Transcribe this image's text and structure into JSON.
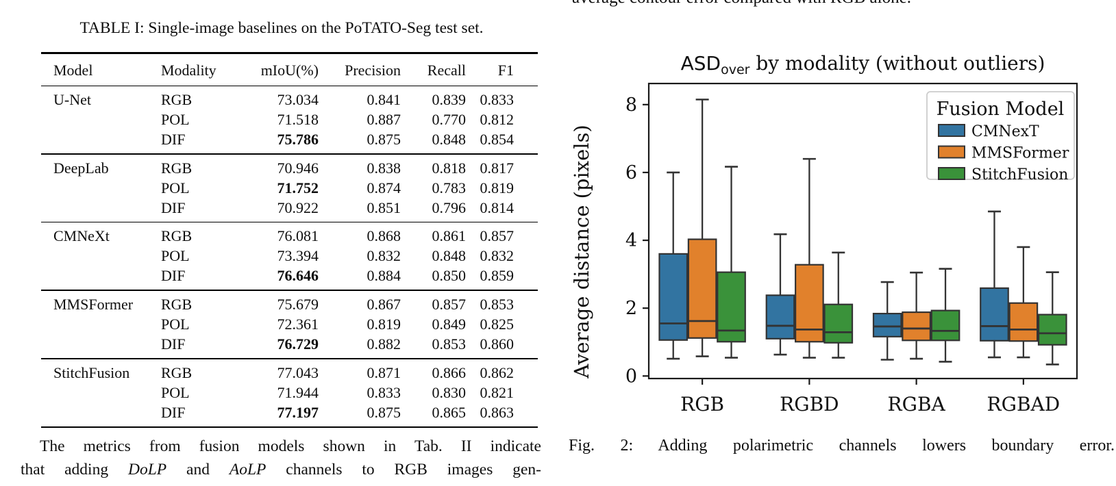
{
  "left_column": {
    "table_caption": "TABLE I: Single-image baselines on the PoTATO-Seg test set.",
    "table": {
      "headers": [
        "Model",
        "Modality",
        "mIoU(%)",
        "Precision",
        "Recall",
        "F1"
      ],
      "groups": [
        {
          "model": "U-Net",
          "rows": [
            {
              "modality": "RGB",
              "miou": "73.034",
              "miou_bold": false,
              "precision": "0.841",
              "recall": "0.839",
              "f1": "0.833"
            },
            {
              "modality": "POL",
              "miou": "71.518",
              "miou_bold": false,
              "precision": "0.887",
              "recall": "0.770",
              "f1": "0.812"
            },
            {
              "modality": "DIF",
              "miou": "75.786",
              "miou_bold": true,
              "precision": "0.875",
              "recall": "0.848",
              "f1": "0.854"
            }
          ]
        },
        {
          "model": "DeepLab",
          "rows": [
            {
              "modality": "RGB",
              "miou": "70.946",
              "miou_bold": false,
              "precision": "0.838",
              "recall": "0.818",
              "f1": "0.817"
            },
            {
              "modality": "POL",
              "miou": "71.752",
              "miou_bold": true,
              "precision": "0.874",
              "recall": "0.783",
              "f1": "0.819"
            },
            {
              "modality": "DIF",
              "miou": "70.922",
              "miou_bold": false,
              "precision": "0.851",
              "recall": "0.796",
              "f1": "0.814"
            }
          ]
        },
        {
          "model": "CMNeXt",
          "rows": [
            {
              "modality": "RGB",
              "miou": "76.081",
              "miou_bold": false,
              "precision": "0.868",
              "recall": "0.861",
              "f1": "0.857"
            },
            {
              "modality": "POL",
              "miou": "73.394",
              "miou_bold": false,
              "precision": "0.832",
              "recall": "0.848",
              "f1": "0.832"
            },
            {
              "modality": "DIF",
              "miou": "76.646",
              "miou_bold": true,
              "precision": "0.884",
              "recall": "0.850",
              "f1": "0.859"
            }
          ]
        },
        {
          "model": "MMSFormer",
          "rows": [
            {
              "modality": "RGB",
              "miou": "75.679",
              "miou_bold": false,
              "precision": "0.867",
              "recall": "0.857",
              "f1": "0.853"
            },
            {
              "modality": "POL",
              "miou": "72.361",
              "miou_bold": false,
              "precision": "0.819",
              "recall": "0.849",
              "f1": "0.825"
            },
            {
              "modality": "DIF",
              "miou": "76.729",
              "miou_bold": true,
              "precision": "0.882",
              "recall": "0.853",
              "f1": "0.860"
            }
          ]
        },
        {
          "model": "StitchFusion",
          "rows": [
            {
              "modality": "RGB",
              "miou": "77.043",
              "miou_bold": false,
              "precision": "0.871",
              "recall": "0.866",
              "f1": "0.862"
            },
            {
              "modality": "POL",
              "miou": "71.944",
              "miou_bold": false,
              "precision": "0.833",
              "recall": "0.830",
              "f1": "0.821"
            },
            {
              "modality": "DIF",
              "miou": "77.197",
              "miou_bold": true,
              "precision": "0.875",
              "recall": "0.865",
              "f1": "0.863"
            }
          ]
        }
      ]
    },
    "paragraph": {
      "lines": [
        [
          {
            "t": "The metrics from fusion models shown in Tab. II indicate",
            "i": false
          }
        ],
        [
          {
            "t": "that adding ",
            "i": false
          },
          {
            "t": "DoLP",
            "i": true
          },
          {
            "t": " and ",
            "i": false
          },
          {
            "t": "AoLP",
            "i": true
          },
          {
            "t": " channels to RGB images gen-",
            "i": false
          }
        ]
      ]
    }
  },
  "right_column": {
    "top_clipped_text": "average contour error compared with RGB alone.",
    "figure_caption": "Fig. 2: Adding polarimetric channels lowers boundary error."
  },
  "chart_data": {
    "type": "boxplot",
    "title": "ASD_over by modality (without outliers)",
    "title_parts": {
      "main": "ASD",
      "subscript": "over",
      "rest": " by modality (without outliers)"
    },
    "ylabel": "Average distance (pixels)",
    "xlabel": "",
    "categories": [
      "RGB",
      "RGBD",
      "RGBA",
      "RGBAD"
    ],
    "yticks": [
      0,
      2,
      4,
      6,
      8
    ],
    "ylim": [
      -0.1,
      8.65
    ],
    "grid": false,
    "legend": {
      "title": "Fusion Model",
      "position": "upper right"
    },
    "edge_color": "#333333",
    "series": [
      {
        "name": "CMNexT",
        "color": "#3274a1",
        "boxes": [
          {
            "category": "RGB",
            "whislo": 0.51,
            "q1": 1.06,
            "med": 1.55,
            "q3": 3.6,
            "whishi": 6.0
          },
          {
            "category": "RGBD",
            "whislo": 0.63,
            "q1": 1.1,
            "med": 1.48,
            "q3": 2.38,
            "whishi": 4.18
          },
          {
            "category": "RGBA",
            "whislo": 0.48,
            "q1": 1.16,
            "med": 1.46,
            "q3": 1.84,
            "whishi": 2.77
          },
          {
            "category": "RGBAD",
            "whislo": 0.55,
            "q1": 1.04,
            "med": 1.47,
            "q3": 2.59,
            "whishi": 4.85
          }
        ]
      },
      {
        "name": "MMSFormer",
        "color": "#e1812c",
        "boxes": [
          {
            "category": "RGB",
            "whislo": 0.58,
            "q1": 1.12,
            "med": 1.62,
            "q3": 4.03,
            "whishi": 8.15
          },
          {
            "category": "RGBD",
            "whislo": 0.54,
            "q1": 1.01,
            "med": 1.37,
            "q3": 3.28,
            "whishi": 6.4
          },
          {
            "category": "RGBA",
            "whislo": 0.51,
            "q1": 1.05,
            "med": 1.4,
            "q3": 1.88,
            "whishi": 3.05
          },
          {
            "category": "RGBAD",
            "whislo": 0.55,
            "q1": 1.03,
            "med": 1.37,
            "q3": 2.15,
            "whishi": 3.8
          }
        ]
      },
      {
        "name": "StitchFusion",
        "color": "#3a923a",
        "boxes": [
          {
            "category": "RGB",
            "whislo": 0.54,
            "q1": 1.01,
            "med": 1.34,
            "q3": 3.06,
            "whishi": 6.17
          },
          {
            "category": "RGBD",
            "whislo": 0.54,
            "q1": 0.98,
            "med": 1.29,
            "q3": 2.11,
            "whishi": 3.64
          },
          {
            "category": "RGBA",
            "whislo": 0.42,
            "q1": 1.05,
            "med": 1.33,
            "q3": 1.93,
            "whishi": 3.16
          },
          {
            "category": "RGBAD",
            "whislo": 0.34,
            "q1": 0.92,
            "med": 1.26,
            "q3": 1.81,
            "whishi": 3.06
          }
        ]
      }
    ]
  }
}
